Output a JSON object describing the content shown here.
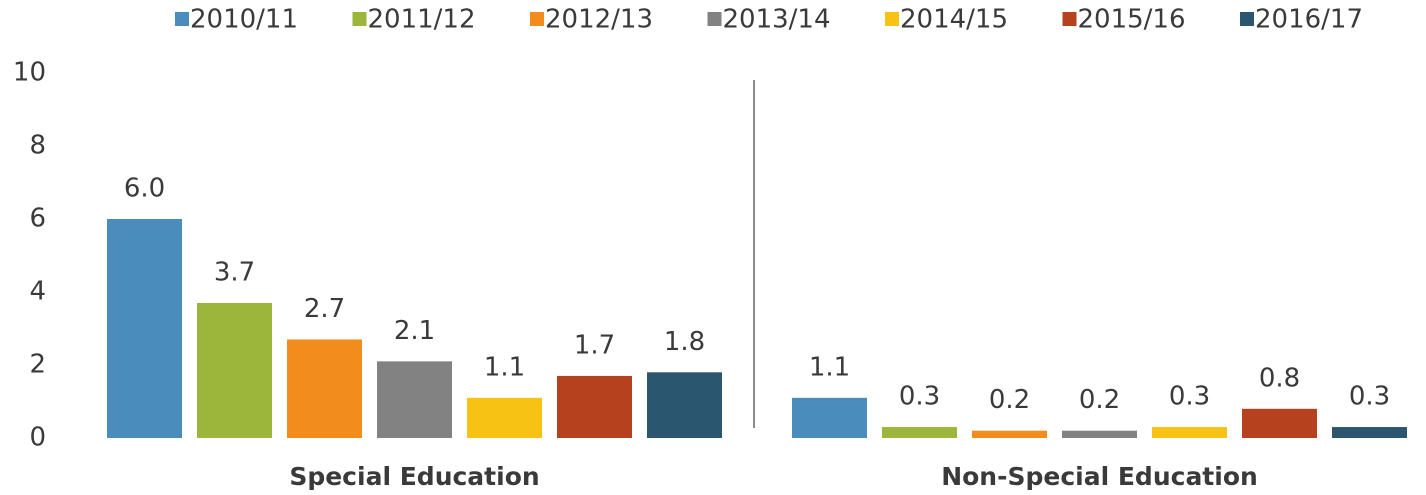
{
  "chart_data": {
    "type": "bar",
    "categories": [
      "Special Education",
      "Non-Special Education"
    ],
    "series": [
      {
        "name": "2010/11",
        "color": "#4a8cbc",
        "values": [
          6.0,
          1.1
        ],
        "value_labels": [
          "6.0",
          "1.1"
        ]
      },
      {
        "name": "2011/12",
        "color": "#9bb63a",
        "values": [
          3.7,
          0.3
        ],
        "value_labels": [
          "3.7",
          "0.3"
        ]
      },
      {
        "name": "2012/13",
        "color": "#f28c1c",
        "values": [
          2.7,
          0.2
        ],
        "value_labels": [
          "2.7",
          "0.2"
        ]
      },
      {
        "name": "2013/14",
        "color": "#828282",
        "values": [
          2.1,
          0.2
        ],
        "value_labels": [
          "2.1",
          "0.2"
        ]
      },
      {
        "name": "2014/15",
        "color": "#f7c214",
        "values": [
          1.1,
          0.3
        ],
        "value_labels": [
          "1.1",
          "0.3"
        ]
      },
      {
        "name": "2015/16",
        "color": "#b5411e",
        "values": [
          1.7,
          0.8
        ],
        "value_labels": [
          "1.7",
          "0.8"
        ]
      },
      {
        "name": "2016/17",
        "color": "#2b5670",
        "values": [
          1.8,
          0.3
        ],
        "value_labels": [
          "1.8",
          "0.3"
        ]
      }
    ],
    "ylim": [
      0,
      10
    ],
    "yticks": [
      0,
      2,
      4,
      6,
      8,
      10
    ],
    "grid": false,
    "legend": "top"
  }
}
